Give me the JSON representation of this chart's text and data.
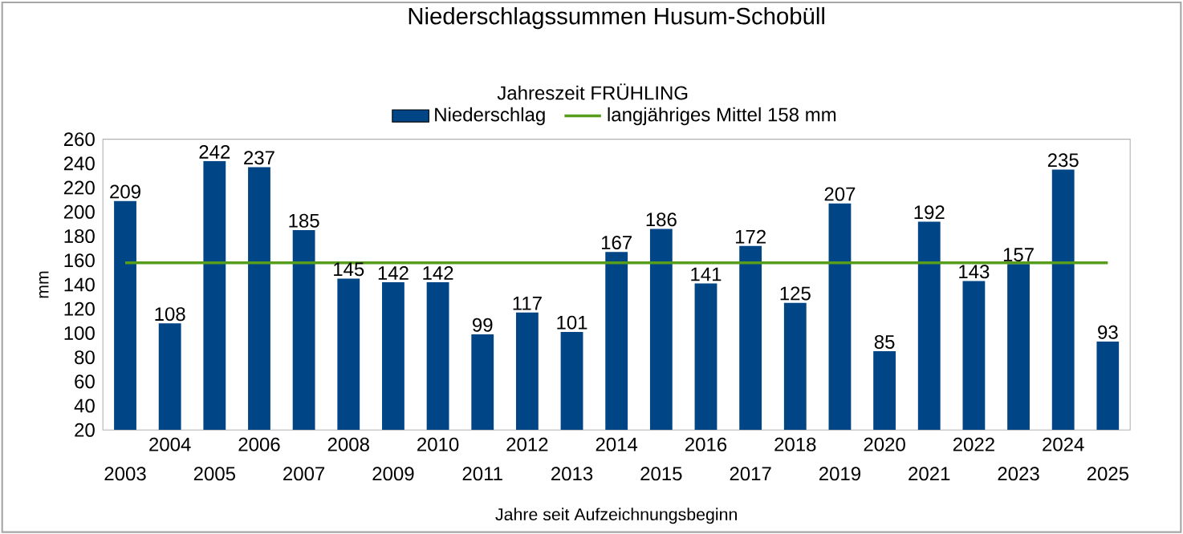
{
  "chart_data": {
    "type": "bar",
    "title": "Niederschlagssummen Husum-Schobüll",
    "legend_title": "Jahreszeit  FRÜHLING",
    "xlabel": "Jahre seit Aufzeichnungsbeginn",
    "ylabel": "mm",
    "categories": [
      "2003",
      "2004",
      "2005",
      "2006",
      "2007",
      "2008",
      "2009",
      "2010",
      "2011",
      "2012",
      "2013",
      "2014",
      "2015",
      "2016",
      "2017",
      "2018",
      "2019",
      "2020",
      "2021",
      "2022",
      "2023",
      "2024",
      "2025"
    ],
    "series": [
      {
        "name": "Niederschlag",
        "color": "#004586",
        "values": [
          209,
          108,
          242,
          237,
          185,
          145,
          142,
          142,
          99,
          117,
          101,
          167,
          186,
          141,
          172,
          125,
          207,
          85,
          192,
          143,
          157,
          235,
          93
        ],
        "value_labels": [
          "209",
          "108",
          "242",
          "237",
          "185",
          "145",
          "142",
          "142",
          "99",
          "117",
          "101",
          "167",
          "186",
          "141",
          "172",
          "125",
          "207",
          "85",
          "192",
          "143",
          "157",
          "235",
          "93"
        ]
      },
      {
        "name": "langjähriges Mittel 158 mm",
        "type": "line",
        "color": "#579d1c",
        "values": [
          158,
          158,
          158,
          158,
          158,
          158,
          158,
          158,
          158,
          158,
          158,
          158,
          158,
          158,
          158,
          158,
          158,
          158,
          158,
          158,
          158,
          158,
          158
        ]
      }
    ],
    "ylim": [
      20,
      260
    ],
    "yticks": [
      20,
      40,
      60,
      80,
      100,
      120,
      140,
      160,
      180,
      200,
      220,
      240,
      260
    ],
    "legend": "top"
  }
}
